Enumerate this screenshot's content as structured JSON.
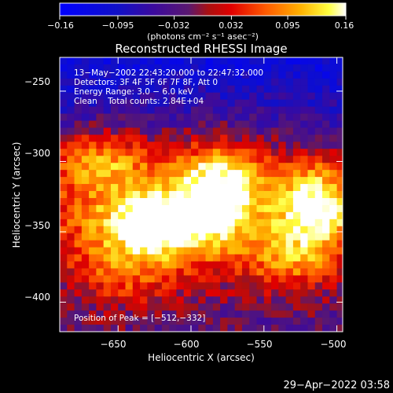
{
  "chart_data": {
    "type": "heatmap",
    "title": "Reconstructed RHESSI Image",
    "xlabel": "Heliocentric X (arcsec)",
    "ylabel": "Heliocentric Y (arcsec)",
    "xlim": [
      -690,
      -496
    ],
    "ylim": [
      -421,
      -226
    ],
    "x_ticks": [
      -650,
      -600,
      -550,
      -500
    ],
    "x_tick_labels": [
      "−650",
      "−600",
      "−550",
      "−500"
    ],
    "y_ticks": [
      -250,
      -300,
      -350,
      -400
    ],
    "y_tick_labels": [
      "−250",
      "−300",
      "−350",
      "−400"
    ],
    "colorbar": {
      "min": -0.16,
      "max": 0.16,
      "ticks": [
        -0.16,
        -0.095,
        -0.032,
        0.032,
        0.095,
        0.16
      ],
      "tick_labels": [
        "−0.16",
        "−0.095",
        "−0.032",
        "0.032",
        "0.095",
        "0.16"
      ],
      "units_label": "(photons cm⁻² s⁻¹ asec⁻²)"
    },
    "annotations": [
      "13−May−2002 22:43:20.000 to 22:47:32.000",
      "Detectors: 3F 4F 5F 6F 7F 8F, Att 0",
      "Energy Range: 3.0 − 6.0 keV",
      "Clean    Total counts: 2.84E+04"
    ],
    "peak_label": "Position of Peak = [−512,−332]",
    "peak": [
      -512,
      -332
    ],
    "sources": [
      {
        "x": -608,
        "y": -335,
        "sx": 78,
        "sy": 34,
        "amp": 0.13
      },
      {
        "x": -663,
        "y": -298,
        "sx": 20,
        "sy": 16,
        "amp": 0.08
      },
      {
        "x": -580,
        "y": -318,
        "sx": 18,
        "sy": 22,
        "amp": 0.12
      },
      {
        "x": -622,
        "y": -345,
        "sx": 24,
        "sy": 15,
        "amp": 0.13
      },
      {
        "x": -512,
        "y": -332,
        "sx": 18,
        "sy": 20,
        "amp": 0.16
      },
      {
        "x": -530,
        "y": -370,
        "sx": 22,
        "sy": 16,
        "amp": 0.08
      },
      {
        "x": -648,
        "y": -380,
        "sx": 24,
        "sy": 18,
        "amp": 0.06
      }
    ]
  },
  "footer": {
    "timestamp": "29−Apr−2022 03:58"
  }
}
